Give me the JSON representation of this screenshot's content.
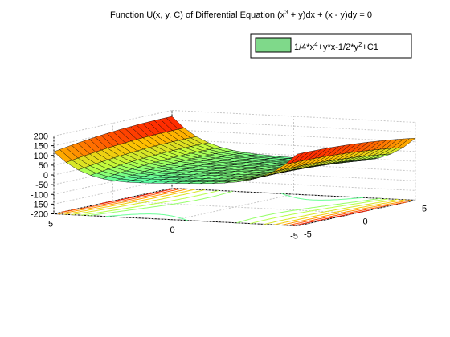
{
  "chart_data": {
    "type": "surface3d",
    "title_parts": {
      "lead": "Function U(x, y, C) of Differential Equation (x",
      "exp1": "3",
      "mid": " + y)dx + (x - y)dy = 0"
    },
    "legend": {
      "placement": "top-right",
      "swatch_color": "#7fd98a",
      "parts": [
        {
          "text": "1/4*x",
          "sup": false
        },
        {
          "text": "4",
          "sup": true
        },
        {
          "text": "+y*x-1/2*y",
          "sup": false
        },
        {
          "text": "2",
          "sup": true
        },
        {
          "text": "+C1",
          "sup": false
        }
      ]
    },
    "xlim": [
      -5,
      5
    ],
    "ylim": [
      -5,
      5
    ],
    "zlim": [
      -200,
      200
    ],
    "z_ticks": [
      -200,
      -150,
      -100,
      -50,
      0,
      50,
      100,
      150,
      200
    ],
    "x_tick_labels": [
      "5",
      "0",
      "-5"
    ],
    "y_tick_labels": [
      "-5",
      "0",
      "5"
    ],
    "x_ticks": [
      5,
      0,
      -5
    ],
    "y_ticks": [
      -5,
      0,
      5
    ],
    "function": "U = 1/4*x^4 + y*x - 1/2*y^2 + C1",
    "C1": 0,
    "surface_grid_n": 21,
    "contour_levels": [
      -100,
      -50,
      -10,
      10,
      25,
      50,
      75,
      100,
      125,
      150
    ],
    "colormap": [
      "#00008f",
      "#0020ff",
      "#00bfff",
      "#40ffbf",
      "#bfff40",
      "#ffbf00",
      "#ff2000",
      "#8f0000"
    ],
    "grid": true
  }
}
